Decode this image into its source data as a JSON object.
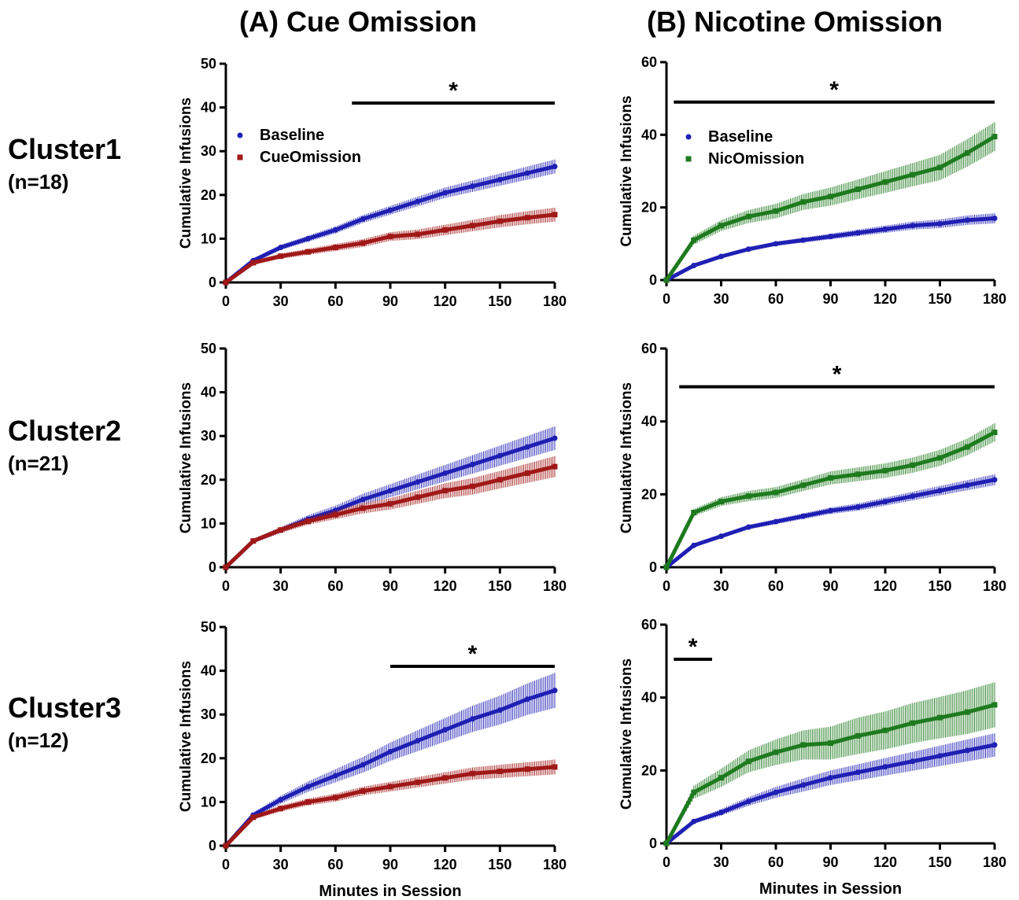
{
  "figure": {
    "column_titles": [
      "(A)  Cue Omission",
      "(B)  Nicotine Omission"
    ],
    "row_labels": [
      {
        "name": "Cluster1",
        "n": "(n=18)"
      },
      {
        "name": "Cluster2",
        "n": "(n=21)"
      },
      {
        "name": "Cluster3",
        "n": "(n=12)"
      }
    ],
    "colors": {
      "baseline": "#1f1fb4",
      "cue_omission": "#a01818",
      "nic_omission": "#1e7a1e",
      "axis": "#000000"
    }
  },
  "chart_data": [
    {
      "type": "line",
      "panel": "A-Cluster1",
      "x": [
        0,
        15,
        30,
        45,
        60,
        75,
        90,
        105,
        120,
        135,
        150,
        165,
        180
      ],
      "series": [
        {
          "name": "Baseline",
          "marker": "circle",
          "color": "#1f1fb4",
          "values": [
            0,
            5,
            8,
            10,
            12,
            14.5,
            16.5,
            18.5,
            20.5,
            22,
            23.5,
            25,
            26.5
          ],
          "error": [
            0,
            0.5,
            0.6,
            0.7,
            0.8,
            0.9,
            1.0,
            1.1,
            1.2,
            1.3,
            1.4,
            1.5,
            1.6
          ]
        },
        {
          "name": "CueOmission",
          "marker": "square",
          "color": "#a01818",
          "values": [
            0,
            4.5,
            6,
            7,
            8,
            9,
            10.5,
            11,
            12,
            13,
            14,
            14.8,
            15.5
          ],
          "error": [
            0,
            0.5,
            0.6,
            0.7,
            0.8,
            0.9,
            1.0,
            1.1,
            1.2,
            1.3,
            1.4,
            1.5,
            1.6
          ]
        }
      ],
      "xlabel": "",
      "ylabel": "Cumulative Infusions",
      "xlim": [
        0,
        180
      ],
      "ylim": [
        0,
        50
      ],
      "xticks": [
        0,
        30,
        60,
        90,
        120,
        150,
        180
      ],
      "yticks": [
        0,
        10,
        20,
        30,
        40,
        50
      ],
      "significance": {
        "x_start": 69,
        "x_end": 180,
        "y": 41,
        "label": "*"
      },
      "legend": "upper-left"
    },
    {
      "type": "line",
      "panel": "B-Cluster1",
      "x": [
        0,
        15,
        30,
        45,
        60,
        75,
        90,
        105,
        120,
        135,
        150,
        165,
        180
      ],
      "series": [
        {
          "name": "Baseline",
          "marker": "circle",
          "color": "#1f1fb4",
          "values": [
            0,
            4,
            6.5,
            8.5,
            10,
            11,
            12,
            13,
            14,
            15,
            15.5,
            16.5,
            17
          ],
          "error": [
            0,
            0.3,
            0.4,
            0.5,
            0.6,
            0.7,
            0.8,
            0.9,
            1.0,
            1.1,
            1.2,
            1.3,
            1.4
          ]
        },
        {
          "name": "NicOmission",
          "marker": "square",
          "color": "#1e7a1e",
          "values": [
            0,
            11,
            15,
            17.5,
            19,
            21.5,
            23,
            25,
            27,
            29,
            31,
            35,
            39.5
          ],
          "error": [
            0,
            1.2,
            1.5,
            1.8,
            2.0,
            2.2,
            2.5,
            2.7,
            3.0,
            3.2,
            3.5,
            3.8,
            4.0
          ]
        }
      ],
      "xlabel": "",
      "ylabel": "Cumulative Infusions",
      "xlim": [
        0,
        180
      ],
      "ylim": [
        0,
        60
      ],
      "xticks": [
        0,
        30,
        60,
        90,
        120,
        150,
        180
      ],
      "yticks": [
        0,
        20,
        40,
        60
      ],
      "significance": {
        "x_start": 4,
        "x_end": 180,
        "y": 49,
        "label": "*"
      },
      "legend": "upper-left"
    },
    {
      "type": "line",
      "panel": "A-Cluster2",
      "x": [
        0,
        15,
        30,
        45,
        60,
        75,
        90,
        105,
        120,
        135,
        150,
        165,
        180
      ],
      "series": [
        {
          "name": "Baseline",
          "marker": "circle",
          "color": "#1f1fb4",
          "values": [
            0,
            6,
            8.5,
            11,
            13,
            15.5,
            17.5,
            19.5,
            21.5,
            23.5,
            25.5,
            27.5,
            29.5
          ],
          "error": [
            0,
            0.5,
            0.7,
            0.9,
            1.1,
            1.3,
            1.5,
            1.7,
            1.9,
            2.1,
            2.3,
            2.5,
            2.7
          ]
        },
        {
          "name": "CueOmission",
          "marker": "square",
          "color": "#a01818",
          "values": [
            0,
            6,
            8.5,
            10.5,
            12,
            13.5,
            14.5,
            16,
            17.5,
            18.5,
            20,
            21.5,
            23
          ],
          "error": [
            0,
            0.5,
            0.7,
            0.8,
            1.0,
            1.2,
            1.3,
            1.5,
            1.7,
            1.9,
            2.0,
            2.2,
            2.4
          ]
        }
      ],
      "xlabel": "",
      "ylabel": "Cumulative Infusions",
      "xlim": [
        0,
        180
      ],
      "ylim": [
        0,
        50
      ],
      "xticks": [
        0,
        30,
        60,
        90,
        120,
        150,
        180
      ],
      "yticks": [
        0,
        10,
        20,
        30,
        40,
        50
      ]
    },
    {
      "type": "line",
      "panel": "B-Cluster2",
      "x": [
        0,
        15,
        30,
        45,
        60,
        75,
        90,
        105,
        120,
        135,
        150,
        165,
        180
      ],
      "series": [
        {
          "name": "Baseline",
          "marker": "circle",
          "color": "#1f1fb4",
          "values": [
            0,
            6,
            8.5,
            11,
            12.5,
            14,
            15.5,
            16.5,
            18,
            19.5,
            21,
            22.5,
            24
          ],
          "error": [
            0,
            0.4,
            0.5,
            0.6,
            0.7,
            0.8,
            0.9,
            1.0,
            1.1,
            1.2,
            1.3,
            1.4,
            1.5
          ]
        },
        {
          "name": "NicOmission",
          "marker": "square",
          "color": "#1e7a1e",
          "values": [
            0,
            15,
            18,
            19.5,
            20.5,
            22.5,
            24.5,
            25.5,
            26.5,
            28,
            30,
            33,
            37
          ],
          "error": [
            0,
            1.0,
            1.2,
            1.4,
            1.5,
            1.6,
            1.8,
            1.9,
            2.0,
            2.1,
            2.2,
            2.3,
            2.5
          ]
        }
      ],
      "xlabel": "",
      "ylabel": "Cumulative Infusions",
      "xlim": [
        0,
        180
      ],
      "ylim": [
        0,
        60
      ],
      "xticks": [
        0,
        30,
        60,
        90,
        120,
        150,
        180
      ],
      "yticks": [
        0,
        20,
        40,
        60
      ],
      "significance": {
        "x_start": 7,
        "x_end": 180,
        "y": 49.5,
        "label": "*"
      }
    },
    {
      "type": "line",
      "panel": "A-Cluster3",
      "x": [
        0,
        15,
        30,
        45,
        60,
        75,
        90,
        105,
        120,
        135,
        150,
        165,
        180
      ],
      "series": [
        {
          "name": "Baseline",
          "marker": "circle",
          "color": "#1f1fb4",
          "values": [
            0,
            7,
            10.5,
            13.5,
            16,
            18.5,
            21.5,
            24,
            26.5,
            29,
            31,
            33.5,
            35.5
          ],
          "error": [
            0,
            0.6,
            0.9,
            1.2,
            1.5,
            1.8,
            2.1,
            2.4,
            2.7,
            3.0,
            3.3,
            3.6,
            4.0
          ]
        },
        {
          "name": "CueOmission",
          "marker": "square",
          "color": "#a01818",
          "values": [
            0,
            6.5,
            8.5,
            10,
            11,
            12.5,
            13.5,
            14.5,
            15.5,
            16.5,
            17,
            17.5,
            18
          ],
          "error": [
            0,
            0.5,
            0.7,
            0.8,
            0.9,
            1.0,
            1.1,
            1.2,
            1.3,
            1.4,
            1.5,
            1.6,
            1.7
          ]
        }
      ],
      "xlabel": "Minutes in  Session",
      "ylabel": "Cumulative Infusions",
      "xlim": [
        0,
        180
      ],
      "ylim": [
        0,
        50
      ],
      "xticks": [
        0,
        30,
        60,
        90,
        120,
        150,
        180
      ],
      "yticks": [
        0,
        10,
        20,
        30,
        40,
        50
      ],
      "significance": {
        "x_start": 90,
        "x_end": 180,
        "y": 41,
        "label": "*"
      }
    },
    {
      "type": "line",
      "panel": "B-Cluster3",
      "x": [
        0,
        15,
        30,
        45,
        60,
        75,
        90,
        105,
        120,
        135,
        150,
        165,
        180
      ],
      "series": [
        {
          "name": "Baseline",
          "marker": "circle",
          "color": "#1f1fb4",
          "values": [
            0,
            6,
            8.5,
            11.5,
            14,
            16,
            18,
            19.5,
            21,
            22.5,
            24,
            25.5,
            27
          ],
          "error": [
            0,
            0.6,
            0.9,
            1.2,
            1.5,
            1.8,
            2.0,
            2.2,
            2.4,
            2.6,
            2.8,
            3.0,
            3.2
          ]
        },
        {
          "name": "NicOmission",
          "marker": "square",
          "color": "#1e7a1e",
          "values": [
            0,
            14,
            18,
            22.5,
            25,
            27,
            27.5,
            29.5,
            31,
            33,
            34.5,
            36,
            38
          ],
          "error": [
            0,
            1.8,
            2.5,
            3.0,
            3.5,
            4.0,
            4.5,
            5.0,
            5.2,
            5.5,
            5.7,
            6.0,
            6.2
          ]
        }
      ],
      "xlabel": "Minutes in  Session",
      "ylabel": "Cumulative Infusions",
      "xlim": [
        0,
        180
      ],
      "ylim": [
        0,
        60
      ],
      "xticks": [
        0,
        30,
        60,
        90,
        120,
        150,
        180
      ],
      "yticks": [
        0,
        20,
        40,
        60
      ],
      "significance": {
        "x_start": 4,
        "x_end": 25,
        "y": 50.5,
        "label": "*"
      }
    }
  ]
}
